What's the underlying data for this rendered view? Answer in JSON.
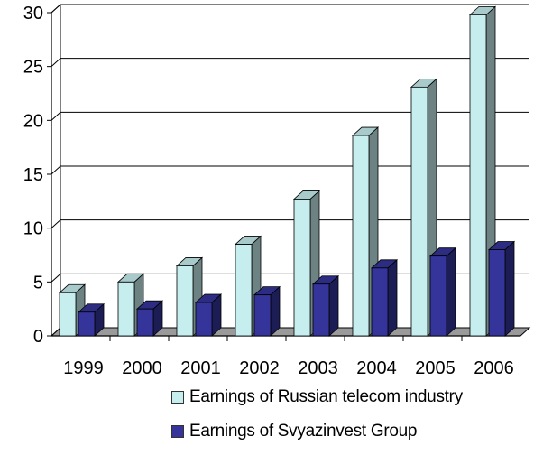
{
  "chart_data": {
    "type": "bar",
    "categories": [
      "1999",
      "2000",
      "2001",
      "2002",
      "2003",
      "2004",
      "2005",
      "2006"
    ],
    "series": [
      {
        "name": "Earnings of Russian telecom industry",
        "values": [
          4,
          5,
          6.5,
          8.5,
          12.7,
          18.6,
          23.1,
          29.8
        ],
        "color": "#c6eeee"
      },
      {
        "name": "Earnings of Svyazinvest Group",
        "values": [
          2.2,
          2.5,
          3.1,
          3.8,
          4.8,
          6.3,
          7.4,
          8.0
        ],
        "color": "#34349a"
      }
    ],
    "yticks": [
      "0",
      "5",
      "10",
      "15",
      "20",
      "25",
      "30"
    ],
    "ylim": [
      0,
      30
    ],
    "grid": true,
    "legend_position": "bottom",
    "title": "",
    "xlabel": "",
    "ylabel": ""
  }
}
